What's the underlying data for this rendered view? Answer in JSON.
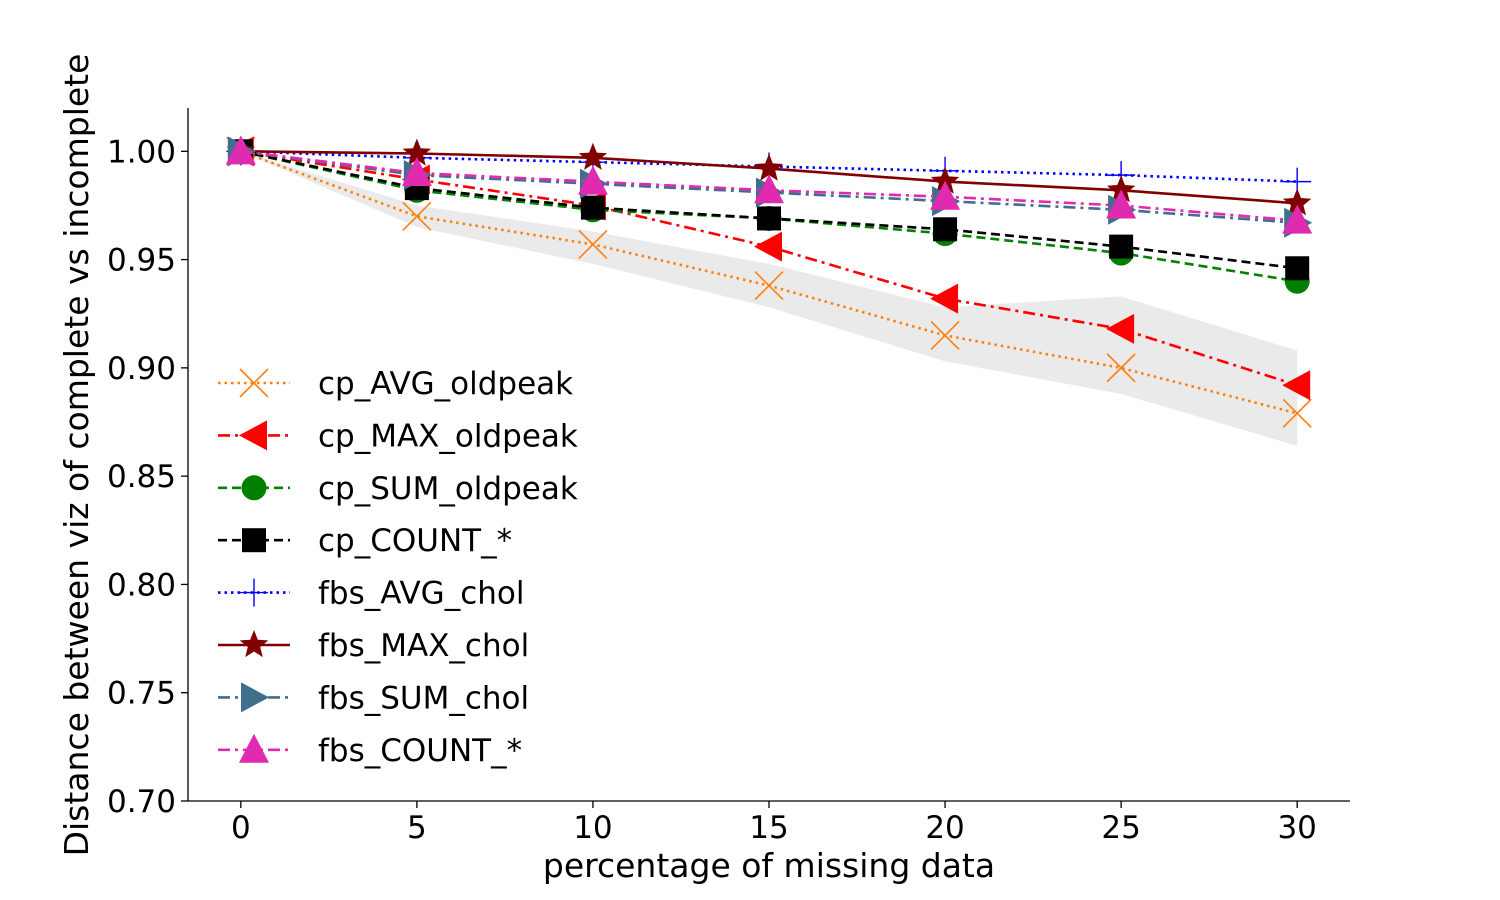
{
  "chart_data": {
    "type": "line",
    "xlabel": "percentage of missing data",
    "ylabel": "Distance between viz of complete vs incomplete",
    "x": [
      0,
      5,
      10,
      15,
      20,
      25,
      30
    ],
    "xticks": [
      "0",
      "5",
      "10",
      "15",
      "20",
      "25",
      "30"
    ],
    "yticks": [
      "0.70",
      "0.75",
      "0.80",
      "0.85",
      "0.90",
      "0.95",
      "1.00"
    ],
    "ytick_values": [
      0.7,
      0.75,
      0.8,
      0.85,
      0.9,
      0.95,
      1.0
    ],
    "xlim": [
      -1.5,
      31.5
    ],
    "ylim": [
      0.7,
      1.02
    ],
    "grid": false,
    "legend_position": "center-left",
    "band": {
      "color": "#d9d9d9",
      "lower": [
        1.0,
        0.965,
        0.948,
        0.928,
        0.903,
        0.888,
        0.864
      ],
      "upper": [
        1.0,
        0.975,
        0.963,
        0.948,
        0.928,
        0.933,
        0.908
      ]
    },
    "series": [
      {
        "name": "cp_AVG_oldpeak",
        "values": [
          1.0,
          0.97,
          0.957,
          0.938,
          0.915,
          0.9,
          0.879
        ],
        "color": "#ff7f0e",
        "dash": "dotted",
        "marker": "x"
      },
      {
        "name": "cp_MAX_oldpeak",
        "values": [
          1.0,
          0.987,
          0.975,
          0.956,
          0.932,
          0.918,
          0.892
        ],
        "color": "#ff0000",
        "dash": "dashdot",
        "marker": "triangle-left"
      },
      {
        "name": "cp_SUM_oldpeak",
        "values": [
          1.0,
          0.982,
          0.973,
          0.969,
          0.962,
          0.953,
          0.94
        ],
        "color": "#008000",
        "dash": "dashed",
        "marker": "circle"
      },
      {
        "name": "cp_COUNT_*",
        "values": [
          1.0,
          0.983,
          0.974,
          0.969,
          0.964,
          0.956,
          0.946
        ],
        "color": "#000000",
        "dash": "dashed",
        "marker": "square"
      },
      {
        "name": "fbs_AVG_chol",
        "values": [
          1.0,
          0.997,
          0.995,
          0.993,
          0.991,
          0.989,
          0.986
        ],
        "color": "#0000ff",
        "dash": "dotted",
        "marker": "plus"
      },
      {
        "name": "fbs_MAX_chol",
        "values": [
          1.0,
          0.999,
          0.997,
          0.992,
          0.986,
          0.982,
          0.976
        ],
        "color": "#800000",
        "dash": "solid",
        "marker": "star"
      },
      {
        "name": "fbs_SUM_chol",
        "values": [
          1.0,
          0.989,
          0.985,
          0.981,
          0.977,
          0.973,
          0.967
        ],
        "color": "#3f6f8c",
        "dash": "dashdot",
        "marker": "triangle-right"
      },
      {
        "name": "fbs_COUNT_*",
        "values": [
          1.0,
          0.99,
          0.986,
          0.982,
          0.979,
          0.975,
          0.968
        ],
        "color": "#e02bb0",
        "dash": "dashdot",
        "marker": "triangle-up"
      }
    ]
  }
}
